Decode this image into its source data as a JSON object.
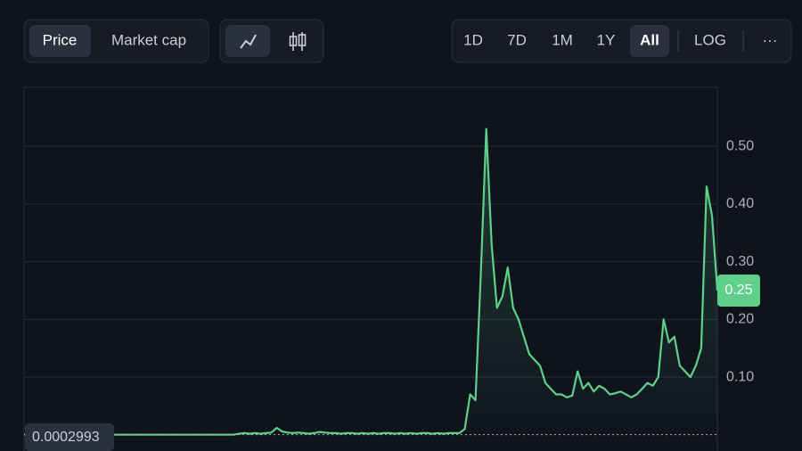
{
  "toolbar": {
    "metric_tabs": [
      "Price",
      "Market cap"
    ],
    "active_metric": "Price",
    "ranges": [
      "1D",
      "7D",
      "1M",
      "1Y",
      "All"
    ],
    "active_range": "All",
    "scale_toggle": "LOG",
    "more": "···"
  },
  "chart_data": {
    "type": "line",
    "series": [
      {
        "color": "#5fd08a",
        "values": [
          0.0003,
          0.0003,
          0.0003,
          0.0003,
          0.0003,
          0.0003,
          0.0003,
          0.0003,
          0.0003,
          0.0003,
          0.0003,
          0.0003,
          0.0003,
          0.0003,
          0.0003,
          0.0003,
          0.0003,
          0.0003,
          0.0003,
          0.0003,
          0.0003,
          0.0003,
          0.0003,
          0.0003,
          0.0003,
          0.0003,
          0.0003,
          0.0003,
          0.0003,
          0.0003,
          0.0003,
          0.0003,
          0.0003,
          0.0003,
          0.0003,
          0.0003,
          0.0003,
          0.0003,
          0.0003,
          0.0003,
          0.002,
          0.003,
          0.002,
          0.003,
          0.002,
          0.003,
          0.004,
          0.012,
          0.006,
          0.004,
          0.003,
          0.004,
          0.003,
          0.002,
          0.003,
          0.005,
          0.004,
          0.003,
          0.003,
          0.002,
          0.003,
          0.003,
          0.002,
          0.003,
          0.002,
          0.003,
          0.002,
          0.003,
          0.003,
          0.002,
          0.003,
          0.002,
          0.003,
          0.002,
          0.003,
          0.003,
          0.002,
          0.003,
          0.002,
          0.003,
          0.003,
          0.003,
          0.01,
          0.07,
          0.06,
          0.28,
          0.53,
          0.33,
          0.22,
          0.24,
          0.29,
          0.22,
          0.2,
          0.17,
          0.14,
          0.13,
          0.12,
          0.09,
          0.08,
          0.07,
          0.07,
          0.065,
          0.068,
          0.11,
          0.08,
          0.09,
          0.075,
          0.085,
          0.08,
          0.07,
          0.072,
          0.075,
          0.07,
          0.065,
          0.07,
          0.08,
          0.09,
          0.085,
          0.1,
          0.2,
          0.16,
          0.17,
          0.12,
          0.11,
          0.1,
          0.12,
          0.15,
          0.43,
          0.38,
          0.25
        ]
      }
    ],
    "ylim": [
      -0.028,
      0.602
    ],
    "yticks": [
      {
        "value": 0.1,
        "label": "0.10"
      },
      {
        "value": 0.2,
        "label": "0.20"
      },
      {
        "value": 0.3,
        "label": "0.30"
      },
      {
        "value": 0.4,
        "label": "0.40"
      },
      {
        "value": 0.5,
        "label": "0.50"
      }
    ],
    "grid": true,
    "current_price": {
      "value": 0.25,
      "label": "0.25"
    },
    "baseline": {
      "value": 0.0002993,
      "label": "0.0002993"
    }
  }
}
